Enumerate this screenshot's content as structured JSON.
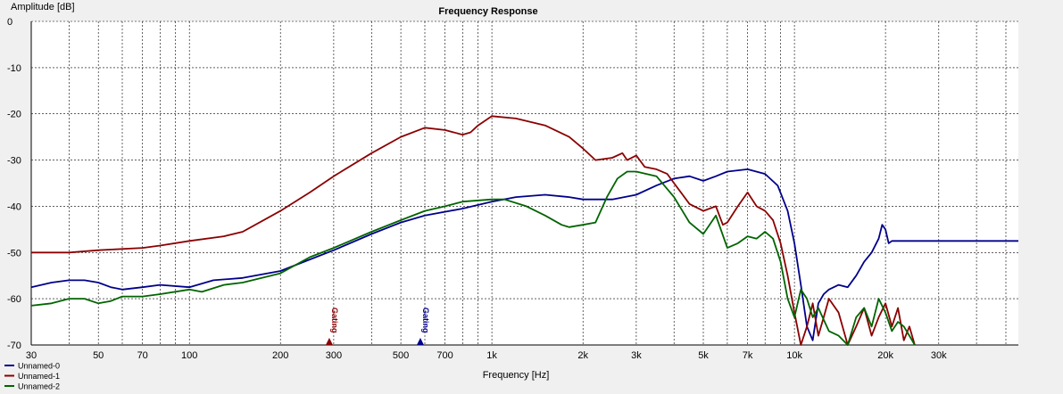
{
  "chart_data": {
    "type": "line",
    "title": "Frequency Response",
    "xlabel": "Frequency [Hz]",
    "ylabel": "Amplitude [dB]",
    "x_scale": "log",
    "xlim": [
      30,
      55000
    ],
    "ylim": [
      -70,
      0
    ],
    "grid": true,
    "legend_position": "bottom-left",
    "x_tick_labels": [
      {
        "value": 30,
        "label": "30"
      },
      {
        "value": 50,
        "label": "50"
      },
      {
        "value": 70,
        "label": "70"
      },
      {
        "value": 100,
        "label": "100"
      },
      {
        "value": 200,
        "label": "200"
      },
      {
        "value": 300,
        "label": "300"
      },
      {
        "value": 500,
        "label": "500"
      },
      {
        "value": 700,
        "label": "700"
      },
      {
        "value": 1000,
        "label": "1k"
      },
      {
        "value": 2000,
        "label": "2k"
      },
      {
        "value": 3000,
        "label": "3k"
      },
      {
        "value": 5000,
        "label": "5k"
      },
      {
        "value": 7000,
        "label": "7k"
      },
      {
        "value": 10000,
        "label": "10k"
      },
      {
        "value": 20000,
        "label": "20k"
      },
      {
        "value": 30000,
        "label": "30k"
      }
    ],
    "y_ticks": [
      0,
      -10,
      -20,
      -30,
      -40,
      -50,
      -60,
      -70
    ],
    "markers": [
      {
        "label": "Gating",
        "x": 290,
        "color": "#8b0000"
      },
      {
        "label": "Gating",
        "x": 580,
        "color": "#00008b"
      }
    ],
    "series": [
      {
        "name": "Unnamed-0",
        "color": "#00008b",
        "points": [
          [
            30,
            -57.5
          ],
          [
            35,
            -56.5
          ],
          [
            40,
            -56
          ],
          [
            45,
            -56
          ],
          [
            50,
            -56.5
          ],
          [
            55,
            -57.5
          ],
          [
            60,
            -58
          ],
          [
            70,
            -57.5
          ],
          [
            80,
            -57
          ],
          [
            100,
            -57.5
          ],
          [
            120,
            -56
          ],
          [
            150,
            -55.5
          ],
          [
            200,
            -54
          ],
          [
            250,
            -51.5
          ],
          [
            300,
            -49.5
          ],
          [
            400,
            -46
          ],
          [
            500,
            -43.5
          ],
          [
            600,
            -42
          ],
          [
            800,
            -40.5
          ],
          [
            1000,
            -39
          ],
          [
            1200,
            -38
          ],
          [
            1500,
            -37.5
          ],
          [
            1800,
            -38
          ],
          [
            2000,
            -38.5
          ],
          [
            2500,
            -38.5
          ],
          [
            3000,
            -37.5
          ],
          [
            3500,
            -35.5
          ],
          [
            4000,
            -34
          ],
          [
            4500,
            -33.5
          ],
          [
            5000,
            -34.5
          ],
          [
            5500,
            -33.5
          ],
          [
            6000,
            -32.5
          ],
          [
            7000,
            -32
          ],
          [
            8000,
            -33
          ],
          [
            8800,
            -35.5
          ],
          [
            9500,
            -41
          ],
          [
            10000,
            -48
          ],
          [
            10500,
            -57
          ],
          [
            11000,
            -66
          ],
          [
            11500,
            -69
          ],
          [
            12000,
            -61
          ],
          [
            12500,
            -59
          ],
          [
            13000,
            -58
          ],
          [
            14000,
            -57
          ],
          [
            15000,
            -57.5
          ],
          [
            16000,
            -55
          ],
          [
            17000,
            -52
          ],
          [
            18000,
            -50
          ],
          [
            19000,
            -47
          ],
          [
            19500,
            -44
          ],
          [
            20000,
            -45
          ],
          [
            20500,
            -48
          ],
          [
            21000,
            -47.5
          ],
          [
            55000,
            -47.5
          ]
        ]
      },
      {
        "name": "Unnamed-1",
        "color": "#8b0000",
        "points": [
          [
            30,
            -50
          ],
          [
            40,
            -50
          ],
          [
            50,
            -49.5
          ],
          [
            70,
            -49
          ],
          [
            80,
            -48.5
          ],
          [
            100,
            -47.5
          ],
          [
            130,
            -46.5
          ],
          [
            150,
            -45.5
          ],
          [
            200,
            -41
          ],
          [
            250,
            -37
          ],
          [
            300,
            -33.5
          ],
          [
            400,
            -28.5
          ],
          [
            500,
            -25
          ],
          [
            600,
            -23
          ],
          [
            700,
            -23.5
          ],
          [
            800,
            -24.5
          ],
          [
            850,
            -24
          ],
          [
            900,
            -22.5
          ],
          [
            1000,
            -20.5
          ],
          [
            1200,
            -21
          ],
          [
            1500,
            -22.5
          ],
          [
            1800,
            -25
          ],
          [
            2000,
            -27.5
          ],
          [
            2200,
            -30
          ],
          [
            2500,
            -29.5
          ],
          [
            2700,
            -28.5
          ],
          [
            2800,
            -30
          ],
          [
            3000,
            -29
          ],
          [
            3200,
            -31.5
          ],
          [
            3500,
            -32
          ],
          [
            3800,
            -33
          ],
          [
            4000,
            -35
          ],
          [
            4500,
            -39.5
          ],
          [
            5000,
            -41
          ],
          [
            5500,
            -40
          ],
          [
            5800,
            -44
          ],
          [
            6000,
            -43.5
          ],
          [
            6500,
            -40
          ],
          [
            7000,
            -37
          ],
          [
            7500,
            -40
          ],
          [
            8000,
            -41
          ],
          [
            8500,
            -43
          ],
          [
            9000,
            -48
          ],
          [
            9500,
            -55
          ],
          [
            10000,
            -63
          ],
          [
            10500,
            -70
          ],
          [
            11000,
            -66
          ],
          [
            11500,
            -61
          ],
          [
            12000,
            -68
          ],
          [
            12500,
            -64
          ],
          [
            13000,
            -60
          ],
          [
            14000,
            -63
          ],
          [
            15000,
            -70
          ],
          [
            16000,
            -66
          ],
          [
            17000,
            -62
          ],
          [
            18000,
            -68
          ],
          [
            19000,
            -64
          ],
          [
            20000,
            -61
          ],
          [
            21000,
            -66
          ],
          [
            22000,
            -62
          ],
          [
            23000,
            -69
          ],
          [
            24000,
            -66
          ],
          [
            25000,
            -70
          ]
        ]
      },
      {
        "name": "Unnamed-2",
        "color": "#006400",
        "points": [
          [
            30,
            -61.5
          ],
          [
            35,
            -61
          ],
          [
            40,
            -60
          ],
          [
            45,
            -60
          ],
          [
            50,
            -61
          ],
          [
            55,
            -60.5
          ],
          [
            60,
            -59.5
          ],
          [
            70,
            -59.5
          ],
          [
            80,
            -59
          ],
          [
            100,
            -58
          ],
          [
            110,
            -58.5
          ],
          [
            130,
            -57
          ],
          [
            150,
            -56.5
          ],
          [
            200,
            -54.5
          ],
          [
            250,
            -51
          ],
          [
            300,
            -49
          ],
          [
            400,
            -45.5
          ],
          [
            500,
            -43
          ],
          [
            600,
            -41
          ],
          [
            700,
            -40
          ],
          [
            800,
            -39
          ],
          [
            1000,
            -38.5
          ],
          [
            1100,
            -38.5
          ],
          [
            1300,
            -40
          ],
          [
            1500,
            -42
          ],
          [
            1700,
            -44
          ],
          [
            1800,
            -44.5
          ],
          [
            2000,
            -44
          ],
          [
            2200,
            -43.5
          ],
          [
            2400,
            -38
          ],
          [
            2600,
            -34
          ],
          [
            2800,
            -32.5
          ],
          [
            3000,
            -32.5
          ],
          [
            3500,
            -33.5
          ],
          [
            4000,
            -38
          ],
          [
            4500,
            -43.5
          ],
          [
            5000,
            -46
          ],
          [
            5500,
            -42
          ],
          [
            6000,
            -49
          ],
          [
            6500,
            -48
          ],
          [
            7000,
            -46.5
          ],
          [
            7500,
            -47
          ],
          [
            8000,
            -45.5
          ],
          [
            8500,
            -47
          ],
          [
            9000,
            -52
          ],
          [
            9500,
            -60
          ],
          [
            10000,
            -64
          ],
          [
            10500,
            -58
          ],
          [
            11000,
            -60
          ],
          [
            11500,
            -64
          ],
          [
            12000,
            -62
          ],
          [
            13000,
            -67
          ],
          [
            14000,
            -68
          ],
          [
            15000,
            -70
          ],
          [
            16000,
            -64
          ],
          [
            17000,
            -62
          ],
          [
            18000,
            -66
          ],
          [
            19000,
            -60
          ],
          [
            20000,
            -63
          ],
          [
            21000,
            -67
          ],
          [
            22000,
            -65
          ],
          [
            23000,
            -66
          ],
          [
            24000,
            -68
          ],
          [
            25000,
            -70
          ]
        ]
      }
    ]
  }
}
